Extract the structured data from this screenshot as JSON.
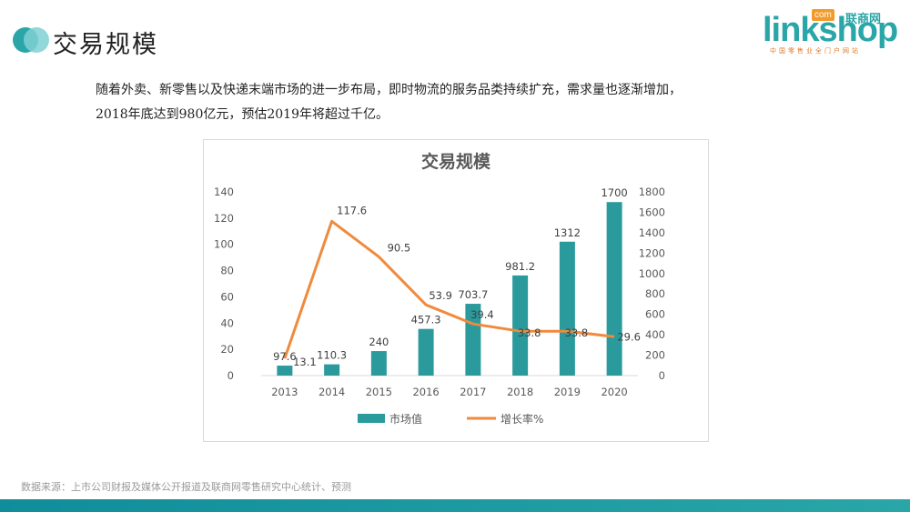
{
  "header": {
    "title": "交易规模"
  },
  "logo": {
    "text": "linkshop",
    "com_badge": "com",
    "cn_name": "联商网",
    "tagline": "中国零售业全门户网站"
  },
  "description": {
    "line1": "随着外卖、新零售以及快递末端市场的进一步布局，即时物流的服务品类持续扩充，需求量也逐渐增加，",
    "line2": "2018年底达到980亿元，预估2019年将超过千亿。"
  },
  "footer": {
    "source": "数据来源：上市公司财报及媒体公开报道及联商网零售研究中心统计、预测"
  },
  "colors": {
    "bar": "#2a9a9c",
    "line": "#f08a3c",
    "accent": "#2aa6a8",
    "bottom_bar_left": "#0f8d9a",
    "bottom_bar_right": "#2aa6a8"
  },
  "chart_data": {
    "type": "bar",
    "title": "交易规模",
    "categories": [
      "2013",
      "2014",
      "2015",
      "2016",
      "2017",
      "2018",
      "2019",
      "2020"
    ],
    "series": [
      {
        "name": "市场值",
        "type": "bar",
        "axis": "right",
        "values": [
          97.6,
          110.3,
          240,
          457.3,
          703.7,
          981.2,
          1312,
          1700
        ],
        "labels": [
          "97.6",
          "110.3",
          "240",
          "457.3",
          "703.7",
          "981.2",
          "1312",
          "1700"
        ]
      },
      {
        "name": "增长率%",
        "type": "line",
        "axis": "left",
        "values": [
          13.1,
          117.6,
          90.5,
          53.9,
          39.4,
          33.8,
          33.8,
          29.6
        ],
        "labels": [
          "13.1",
          "117.6",
          "90.5",
          "53.9",
          "39.4",
          "33.8",
          "33.8",
          "29.6"
        ]
      }
    ],
    "y_left": {
      "min": 0,
      "max": 140,
      "ticks": [
        "0",
        "20",
        "40",
        "60",
        "80",
        "100",
        "120",
        "140"
      ]
    },
    "y_right": {
      "min": 0,
      "max": 1800,
      "ticks": [
        "0",
        "200",
        "400",
        "600",
        "800",
        "1000",
        "1200",
        "1400",
        "1600",
        "1800"
      ]
    },
    "grid": false,
    "legend": "bottom"
  }
}
